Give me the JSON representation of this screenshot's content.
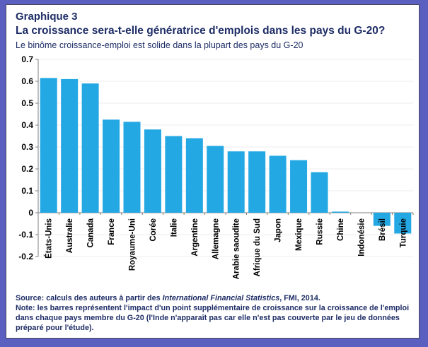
{
  "header": {
    "kicker": "Graphique 3",
    "title": "La croissance sera-t-elle génératrice d'emplois dans les pays du G-20?",
    "subtitle": "Le binôme croissance-emploi est solide dans la plupart des pays du G-20"
  },
  "chart_data": {
    "type": "bar",
    "categories": [
      "États-Unis",
      "Australie",
      "Canada",
      "France",
      "Royaume-Uni",
      "Corée",
      "Italie",
      "Argentine",
      "Allemagne",
      "Arabie saoudite",
      "Afrique du Sud",
      "Japon",
      "Mexique",
      "Russie",
      "Chine",
      "Indonésie",
      "Brésil",
      "Turquie"
    ],
    "values": [
      0.615,
      0.61,
      0.59,
      0.425,
      0.415,
      0.38,
      0.35,
      0.34,
      0.305,
      0.28,
      0.28,
      0.26,
      0.24,
      0.185,
      0.005,
      0.0,
      -0.06,
      -0.095
    ],
    "title": "",
    "xlabel": "",
    "ylabel": "",
    "ylim": [
      -0.2,
      0.7
    ],
    "yticks": [
      {
        "v": 0.7,
        "label": "0.7"
      },
      {
        "v": 0.6,
        "label": "0.6"
      },
      {
        "v": 0.5,
        "label": "0.5"
      },
      {
        "v": 0.4,
        "label": "0.4"
      },
      {
        "v": 0.3,
        "label": "0.3"
      },
      {
        "v": 0.2,
        "label": "0.2"
      },
      {
        "v": 0.1,
        "label": "0.1"
      },
      {
        "v": 0.0,
        "label": "0"
      },
      {
        "v": -0.1,
        "label": "-0.1"
      },
      {
        "v": -0.2,
        "label": "-0.2"
      }
    ],
    "grid": true,
    "legend": "none",
    "bar_color": "#23a8e3",
    "axis_color": "#7f7f7f",
    "grid_color": "#ececec",
    "tick_label_color": "#000000"
  },
  "footer": {
    "source_prefix": "Source: calculs des auteurs à partir des ",
    "source_italic": "International Financial Statistics",
    "source_suffix": ", FMI, 2014.",
    "note": "Note: les barres représentent l'impact d'un point supplémentaire de croissance sur la croissance de l'emploi dans chaque pays membre du G-20 (l'Inde n'apparaît pas car elle n'est pas couverte par le jeu de données préparé pour l'étude)."
  },
  "colors": {
    "frame": "#5a5fc0",
    "panel_bg": "#ffffff",
    "title_text": "#1e2d66",
    "bar": "#23a8e3"
  }
}
